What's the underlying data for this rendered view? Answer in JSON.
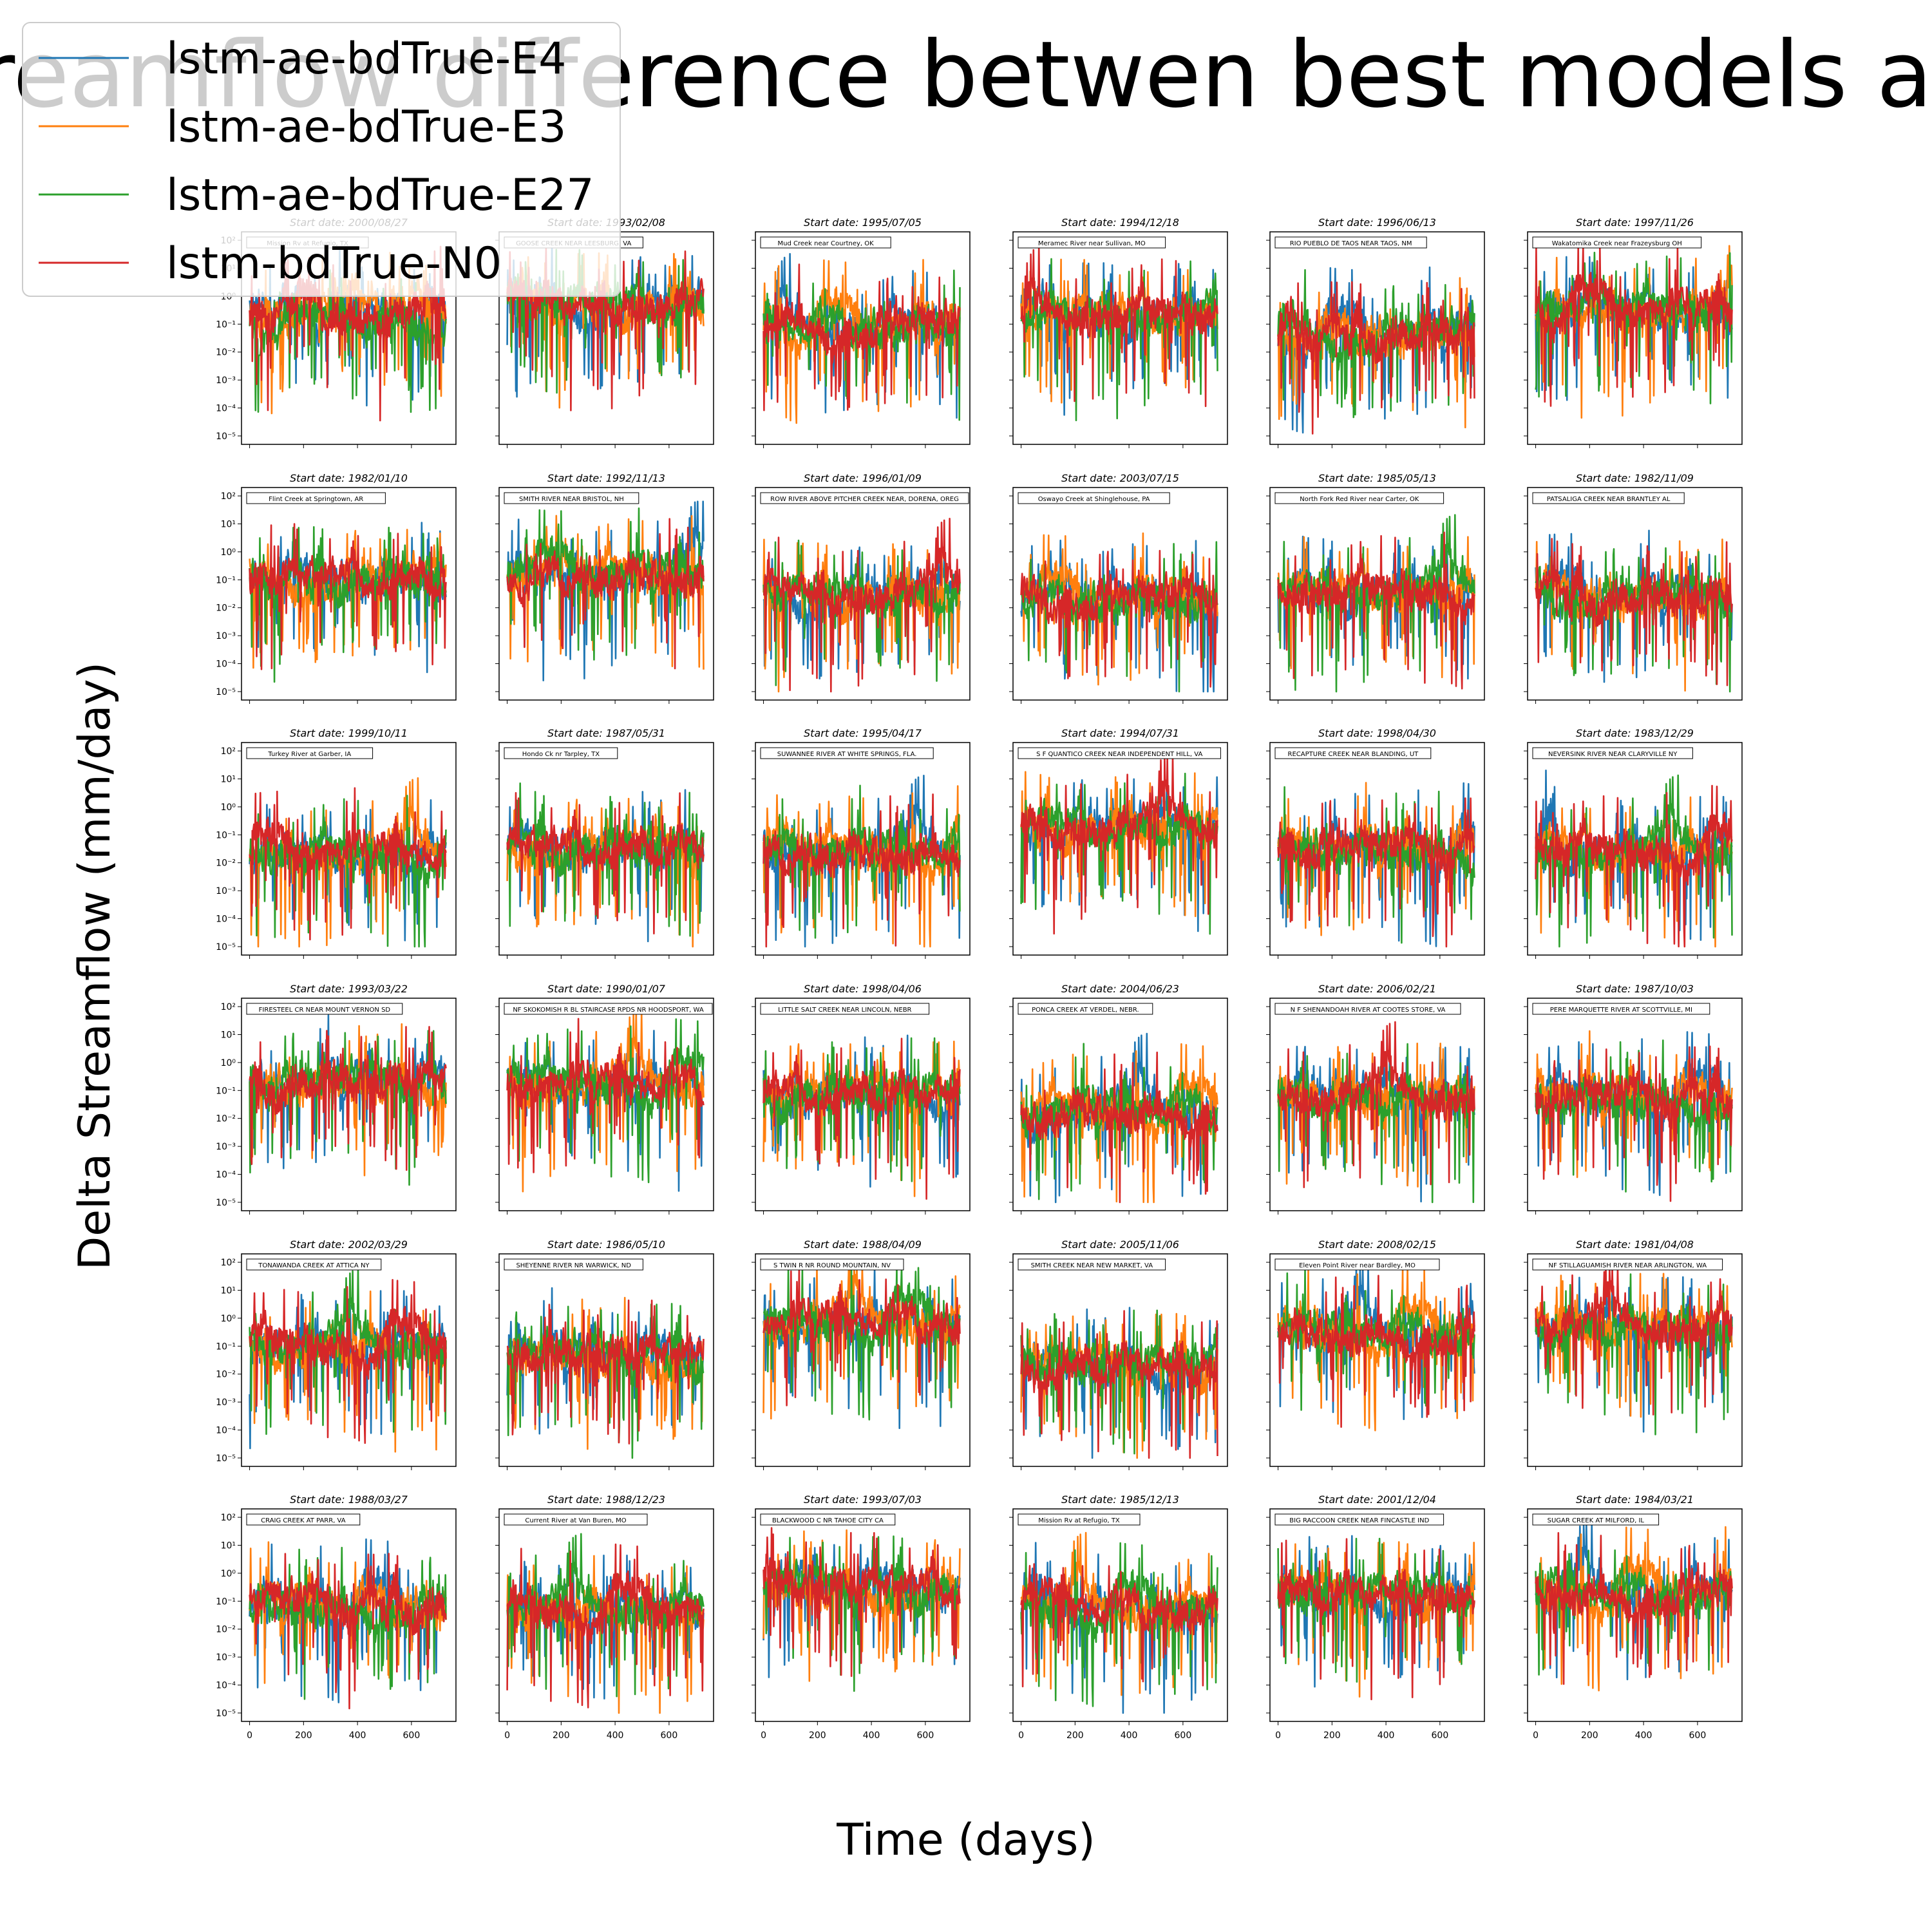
{
  "figure": {
    "title": "Streamflow difference betwen best models and",
    "xlabel": "Time (days)",
    "ylabel": "Delta Streamflow (mm/day)"
  },
  "legend": {
    "placement": "top-left",
    "entries": [
      {
        "label": "lstm-ae-bdTrue-E4",
        "color": "#1f77b4"
      },
      {
        "label": "lstm-ae-bdTrue-E3",
        "color": "#ff7f0e"
      },
      {
        "label": "lstm-ae-bdTrue-E27",
        "color": "#2ca02c"
      },
      {
        "label": "lstm-bdTrue-N0",
        "color": "#d62728"
      }
    ]
  },
  "chart_data": {
    "type": "line",
    "grid": false,
    "yscale": "log",
    "ylim": [
      5e-06,
      200
    ],
    "xlim": [
      -30,
      765
    ],
    "x_ticks": [
      "0",
      "200",
      "400",
      "600"
    ],
    "x_tick_values": [
      0,
      200,
      400,
      600
    ],
    "y_ticks": [
      "10²",
      "10¹",
      "10⁰",
      "10⁻¹",
      "10⁻²",
      "10⁻³",
      "10⁻⁴",
      "10⁻⁵"
    ],
    "y_tick_values": [
      100,
      10,
      1,
      0.1,
      0.01,
      0.001,
      0.0001,
      1e-05
    ],
    "n_days": 730,
    "series_names": [
      "lstm-ae-bdTrue-E4",
      "lstm-ae-bdTrue-E3",
      "lstm-ae-bdTrue-E27",
      "lstm-bdTrue-N0"
    ],
    "panels": [
      {
        "start": "Start date: 2000/08/27",
        "station": "Mission Rv at Refugio, TX"
      },
      {
        "start": "Start date: 1993/02/08",
        "station": "GOOSE CREEK NEAR LEESBURG, VA"
      },
      {
        "start": "Start date: 1995/07/05",
        "station": "Mud Creek near Courtney, OK"
      },
      {
        "start": "Start date: 1994/12/18",
        "station": "Meramec River near Sullivan, MO"
      },
      {
        "start": "Start date: 1996/06/13",
        "station": "RIO PUEBLO DE TAOS NEAR TAOS, NM"
      },
      {
        "start": "Start date: 1997/11/26",
        "station": "Wakatomika Creek near Frazeysburg OH"
      },
      {
        "start": "Start date: 1982/01/10",
        "station": "Flint Creek at Springtown, AR"
      },
      {
        "start": "Start date: 1992/11/13",
        "station": "SMITH RIVER NEAR BRISTOL, NH"
      },
      {
        "start": "Start date: 1996/01/09",
        "station": "ROW RIVER ABOVE PITCHER CREEK NEAR, DORENA, OREG"
      },
      {
        "start": "Start date: 2003/07/15",
        "station": "Oswayo Creek at Shinglehouse, PA"
      },
      {
        "start": "Start date: 1985/05/13",
        "station": "North Fork Red River near Carter, OK"
      },
      {
        "start": "Start date: 1982/11/09",
        "station": "PATSALIGA CREEK NEAR BRANTLEY AL"
      },
      {
        "start": "Start date: 1999/10/11",
        "station": "Turkey River at Garber, IA"
      },
      {
        "start": "Start date: 1987/05/31",
        "station": "Hondo Ck nr Tarpley, TX"
      },
      {
        "start": "Start date: 1995/04/17",
        "station": "SUWANNEE RIVER AT WHITE SPRINGS, FLA."
      },
      {
        "start": "Start date: 1994/07/31",
        "station": "S F QUANTICO CREEK NEAR INDEPENDENT HILL, VA"
      },
      {
        "start": "Start date: 1998/04/30",
        "station": "RECAPTURE CREEK NEAR BLANDING, UT"
      },
      {
        "start": "Start date: 1983/12/29",
        "station": "NEVERSINK RIVER NEAR CLARYVILLE NY"
      },
      {
        "start": "Start date: 1993/03/22",
        "station": "FIRESTEEL CR NEAR MOUNT VERNON SD"
      },
      {
        "start": "Start date: 1990/01/07",
        "station": "NF SKOKOMISH R BL STAIRCASE RPDS NR HOODSPORT, WA"
      },
      {
        "start": "Start date: 1998/04/06",
        "station": "LITTLE SALT CREEK NEAR LINCOLN, NEBR"
      },
      {
        "start": "Start date: 2004/06/23",
        "station": "PONCA CREEK AT VERDEL, NEBR."
      },
      {
        "start": "Start date: 2006/02/21",
        "station": "N F SHENANDOAH RIVER AT COOTES STORE, VA"
      },
      {
        "start": "Start date: 1987/10/03",
        "station": "PERE MARQUETTE RIVER AT SCOTTVILLE, MI"
      },
      {
        "start": "Start date: 2002/03/29",
        "station": "TONAWANDA CREEK AT ATTICA NY"
      },
      {
        "start": "Start date: 1986/05/10",
        "station": "SHEYENNE RIVER NR WARWICK, ND"
      },
      {
        "start": "Start date: 1988/04/09",
        "station": "S TWIN R NR ROUND MOUNTAIN, NV"
      },
      {
        "start": "Start date: 2005/11/06",
        "station": "SMITH CREEK NEAR NEW MARKET, VA"
      },
      {
        "start": "Start date: 2008/02/15",
        "station": "Eleven Point River near Bardley, MO"
      },
      {
        "start": "Start date: 1981/04/08",
        "station": "NF STILLAGUAMISH RIVER NEAR ARLINGTON, WA"
      },
      {
        "start": "Start date: 1988/03/27",
        "station": "CRAIG CREEK AT PARR, VA"
      },
      {
        "start": "Start date: 1988/12/23",
        "station": "Current River at Van Buren, MO"
      },
      {
        "start": "Start date: 1993/07/03",
        "station": "BLACKWOOD C NR TAHOE CITY CA"
      },
      {
        "start": "Start date: 1985/12/13",
        "station": "Mission Rv at Refugio, TX"
      },
      {
        "start": "Start date: 2001/12/04",
        "station": "BIG RACCOON CREEK NEAR FINCASTLE IND"
      },
      {
        "start": "Start date: 1984/03/21",
        "station": "SUGAR CREEK AT MILFORD, IL"
      }
    ]
  }
}
